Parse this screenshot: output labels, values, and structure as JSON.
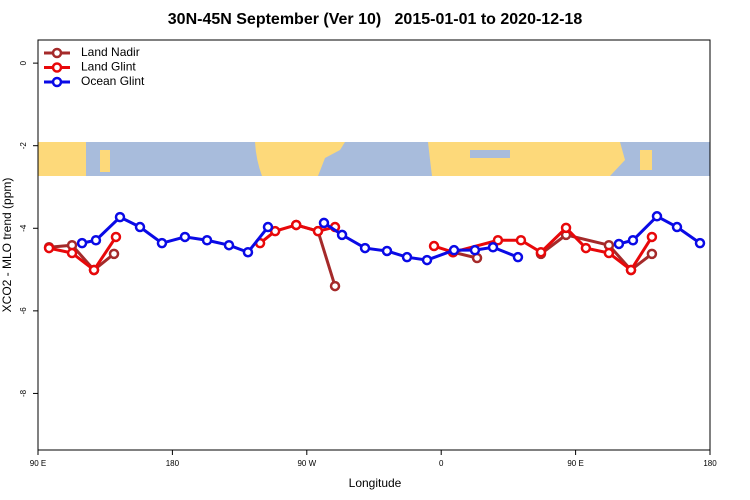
{
  "chart_data": {
    "type": "line",
    "title": "30N-45N September (Ver 10)   2015-01-01 to 2020-12-18",
    "xlabel": "Longitude",
    "ylabel": "XCO2 - MLO trend (ppm)",
    "xlim": [
      90,
      540
    ],
    "ylim": [
      -9.37,
      0.56
    ],
    "xticks": [
      {
        "value": 90,
        "label": "90 E"
      },
      {
        "value": 180,
        "label": "180"
      },
      {
        "value": 270,
        "label": "90 W"
      },
      {
        "value": 360,
        "label": "0"
      },
      {
        "value": 450,
        "label": "90 E"
      },
      {
        "value": 540,
        "label": "180"
      }
    ],
    "yticks": [
      0,
      -2,
      -4,
      -6,
      -8
    ],
    "legend": "top-left",
    "series": [
      {
        "name": "Land Nadir",
        "color": "#a52a2a",
        "x": [
          97.4,
          112.8,
          127.5,
          140.9,
          null,
          262.9,
          277.5,
          288.9,
          null,
          367.9,
          384.0,
          null,
          426.8,
          443.6,
          472.3,
          487.1,
          501.1
        ],
        "values": [
          -4.46,
          -4.41,
          -5.01,
          -4.62,
          null,
          -3.92,
          -4.07,
          -5.4,
          null,
          -4.58,
          -4.72,
          null,
          -4.62,
          -4.16,
          -4.41,
          -5.01,
          -4.62
        ]
      },
      {
        "name": "Land Glint",
        "color": "#e8080a",
        "x": [
          97.4,
          112.8,
          127.5,
          142.2,
          null,
          238.7,
          248.8,
          262.9,
          277.5,
          288.9,
          null,
          355.2,
          367.9,
          398.0,
          413.4,
          426.8,
          443.6,
          456.9,
          472.3,
          487.1,
          501.1
        ],
        "values": [
          -4.48,
          -4.6,
          -5.01,
          -4.21,
          null,
          -4.36,
          -4.07,
          -3.92,
          -4.07,
          -3.97,
          null,
          -4.43,
          -4.58,
          -4.29,
          -4.29,
          -4.58,
          -3.99,
          -4.48,
          -4.6,
          -5.01,
          -4.21
        ]
      },
      {
        "name": "Ocean Glint",
        "color": "#0a0ae6",
        "x": [
          119.5,
          128.8,
          144.9,
          158.3,
          173.0,
          188.4,
          203.2,
          217.9,
          230.6,
          244.0,
          null,
          281.5,
          293.6,
          309.0,
          323.7,
          337.1,
          350.5,
          368.6,
          382.6,
          394.7,
          411.4,
          null,
          479.0,
          488.4,
          504.5,
          517.9,
          533.3
        ],
        "values": [
          -4.36,
          -4.29,
          -3.73,
          -3.97,
          -4.36,
          -4.21,
          -4.29,
          -4.41,
          -4.58,
          -3.97,
          null,
          -3.87,
          -4.16,
          -4.48,
          -4.55,
          -4.7,
          -4.77,
          -4.53,
          -4.53,
          -4.46,
          -4.7,
          null,
          -4.38,
          -4.29,
          -3.71,
          -3.97,
          -4.36
        ]
      }
    ]
  }
}
